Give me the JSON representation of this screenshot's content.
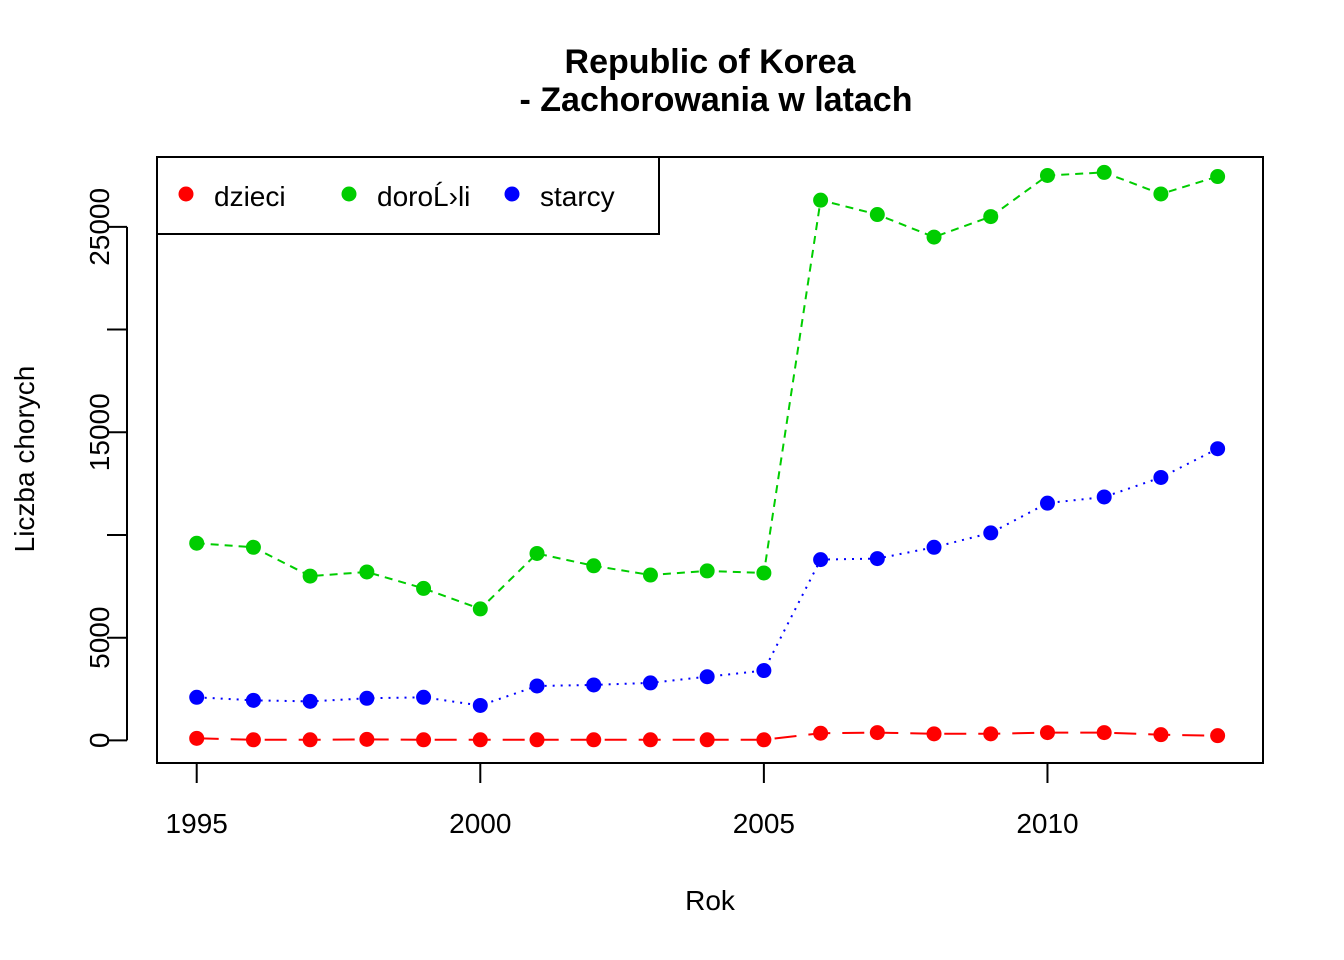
{
  "chart_data": {
    "type": "line",
    "title": "Republic of Korea\n - Zachorowania w latach",
    "title_lines": [
      "Republic of Korea",
      " - Zachorowania w latach"
    ],
    "xlabel": "Rok",
    "ylabel": "Liczba chorych",
    "x": [
      1995,
      1996,
      1997,
      1998,
      1999,
      2000,
      2001,
      2002,
      2003,
      2004,
      2005,
      2006,
      2007,
      2008,
      2009,
      2010,
      2011,
      2012,
      2013
    ],
    "xlim": [
      1994.3,
      2013.8
    ],
    "ylim": [
      -1100,
      28400
    ],
    "x_ticks": [
      1995,
      2000,
      2005,
      2010
    ],
    "x_tick_labels": [
      "1995",
      "2000",
      "2005",
      "2010"
    ],
    "y_ticks": [
      0,
      5000,
      10000,
      15000,
      20000,
      25000
    ],
    "y_tick_labels": [
      "0",
      "5000",
      "",
      "15000",
      "",
      "25000"
    ],
    "legend_position": "top-left",
    "grid": false,
    "series": [
      {
        "name": "dzieci",
        "color": "#FF0000",
        "line_style": "longdash",
        "values": [
          100,
          30,
          30,
          50,
          30,
          30,
          30,
          30,
          30,
          30,
          30,
          350,
          380,
          320,
          320,
          380,
          380,
          280,
          230
        ]
      },
      {
        "name": "doroĹ›li",
        "color": "#00CD00",
        "line_style": "dashed",
        "values": [
          9600,
          9400,
          8000,
          8200,
          7400,
          6400,
          9100,
          8500,
          8050,
          8250,
          8150,
          26300,
          25600,
          24500,
          25500,
          27500,
          27650,
          26600,
          27450
        ]
      },
      {
        "name": "starcy",
        "color": "#0000FF",
        "line_style": "dotted",
        "values": [
          2100,
          1950,
          1900,
          2050,
          2100,
          1700,
          2650,
          2700,
          2800,
          3100,
          3400,
          8800,
          8850,
          9400,
          10100,
          11550,
          11850,
          12800,
          14200
        ]
      }
    ]
  }
}
